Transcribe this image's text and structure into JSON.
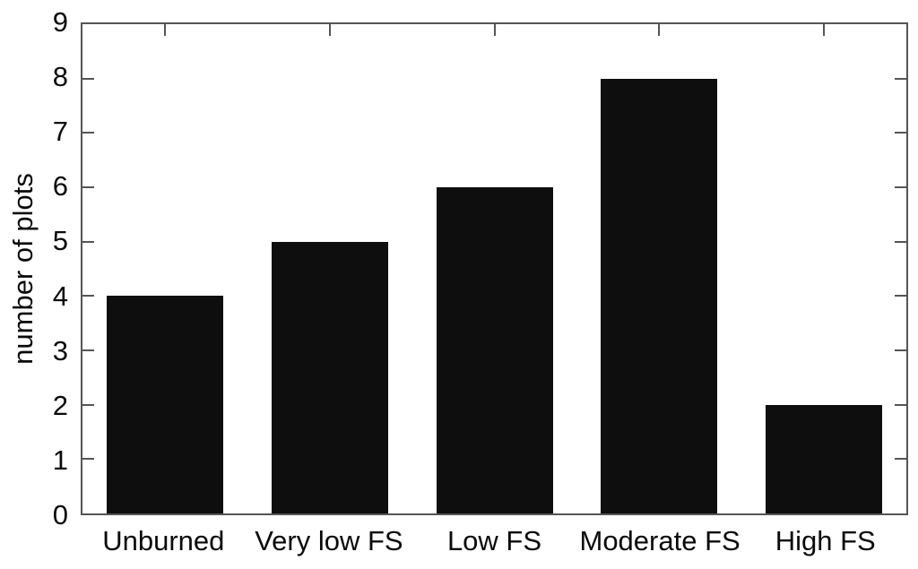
{
  "chart_data": {
    "type": "bar",
    "categories": [
      "Unburned",
      "Very low FS",
      "Low FS",
      "Moderate FS",
      "High FS"
    ],
    "values": [
      4,
      5,
      6,
      8,
      2
    ],
    "title": "",
    "xlabel": "",
    "ylabel": "number of plots",
    "ylim": [
      0,
      9
    ],
    "yticks": [
      0,
      1,
      2,
      3,
      4,
      5,
      6,
      7,
      8,
      9
    ],
    "grid": false,
    "legend_position": "none",
    "bar_color": "#0e0e0e",
    "axis_color": "#555555",
    "text_color": "#0a0a0a",
    "background_color": "#ffffff"
  }
}
